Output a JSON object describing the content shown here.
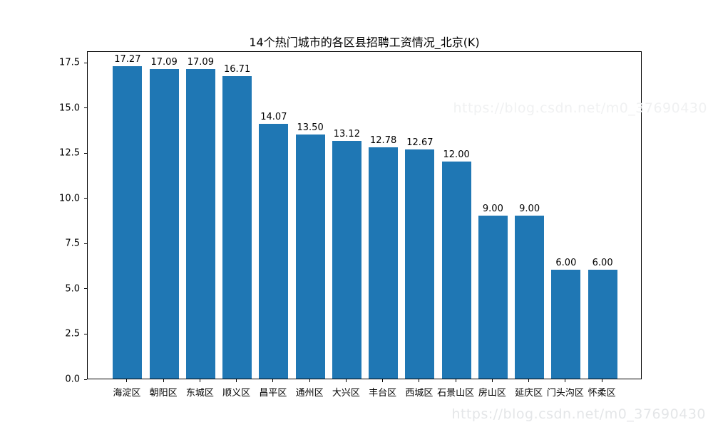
{
  "watermark": {
    "text": "https://blog.csdn.net/m0_37690430"
  },
  "chart_data": {
    "type": "bar",
    "title": "14个热门城市的各区县招聘工资情况_北京(K)",
    "categories": [
      "海淀区",
      "朝阳区",
      "东城区",
      "顺义区",
      "昌平区",
      "通州区",
      "大兴区",
      "丰台区",
      "西城区",
      "石景山区",
      "房山区",
      "延庆区",
      "门头沟区",
      "怀柔区"
    ],
    "values": [
      17.27,
      17.09,
      17.09,
      16.71,
      14.07,
      13.5,
      13.12,
      12.78,
      12.67,
      12.0,
      9.0,
      9.0,
      6.0,
      6.0
    ],
    "bar_labels": [
      "17.27",
      "17.09",
      "17.09",
      "16.71",
      "14.07",
      "13.50",
      "13.12",
      "12.78",
      "12.67",
      "12.00",
      "9.00",
      "9.00",
      "6.00",
      "6.00"
    ],
    "xlabel": "",
    "ylabel": "",
    "yticks": [
      "0.0",
      "2.5",
      "5.0",
      "7.5",
      "10.0",
      "12.5",
      "15.0",
      "17.5"
    ],
    "ytick_values": [
      0.0,
      2.5,
      5.0,
      7.5,
      10.0,
      12.5,
      15.0,
      17.5
    ],
    "ylim": [
      0,
      18.13
    ],
    "grid": false,
    "legend": null,
    "bar_color": "#1f77b4"
  }
}
